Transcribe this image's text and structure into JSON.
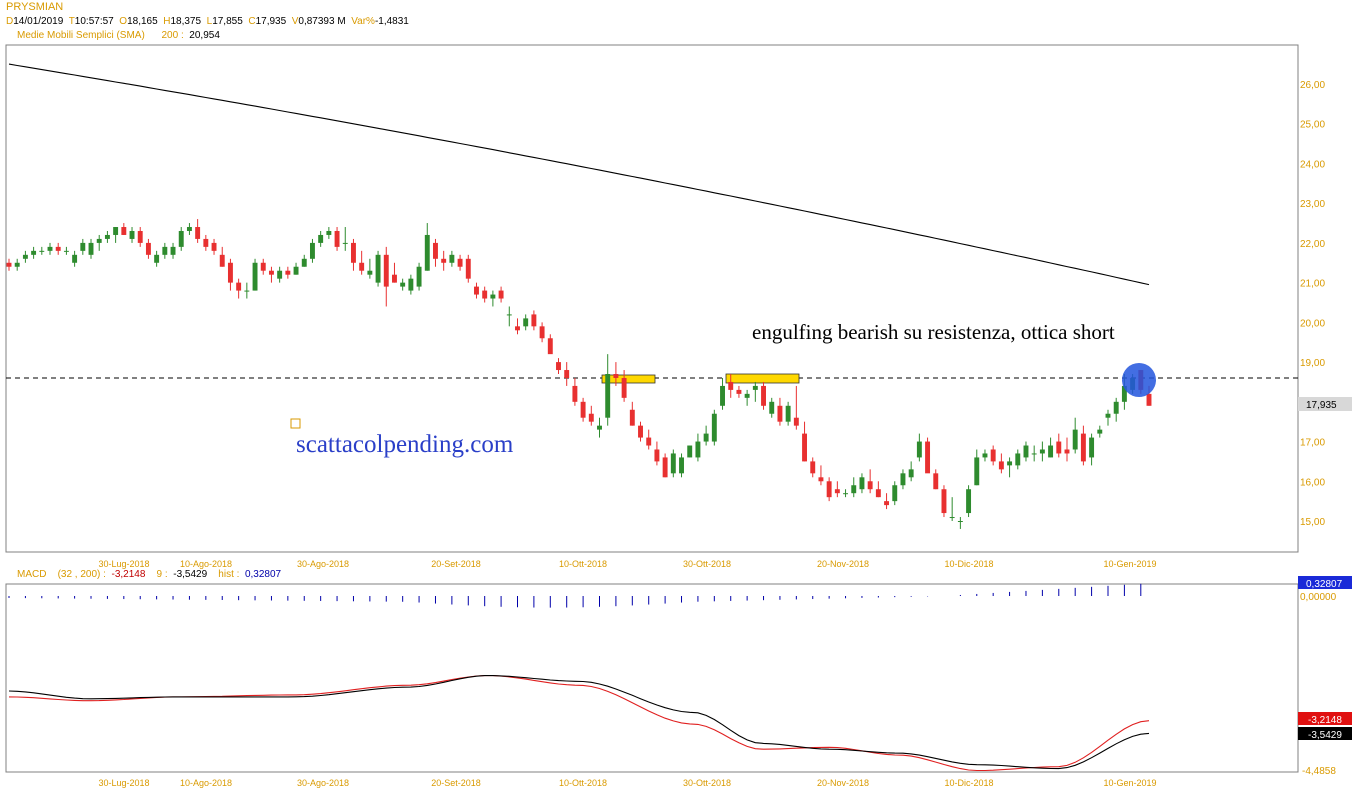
{
  "header": {
    "symbol": "PRYSMIAN",
    "d_label": "D",
    "date": "14/01/2019",
    "t_label": "T",
    "time": "10:57:57",
    "o_label": "O",
    "open": "18,165",
    "h_label": "H",
    "high": "18,375",
    "l_label": "L",
    "low": "17,855",
    "c_label": "C",
    "close": "17,935",
    "v_label": "V",
    "volume": "0,87393 M",
    "var_label": "Var%",
    "var": "-1,4831",
    "sma_label": "Medie Mobili Semplici (SMA)",
    "sma_period": "200 :",
    "sma_value": "20,954"
  },
  "annotations": {
    "comment": "engulfing bearish su resistenza, ottica short",
    "watermark": "scattacolpending.com",
    "price_marker": "17,935"
  },
  "macd": {
    "label": "MACD",
    "params": "(32 , 200) :",
    "macd_value": "-3,2148",
    "signal_label": "9 :",
    "signal_value": "-3,5429",
    "hist_label": "hist :",
    "hist_value": "0,32807",
    "hist_marker": "0,32807",
    "zero_label": "0,00000",
    "macd_marker": "-3,2148",
    "signal_marker": "-3,5429",
    "min_label": "-4,4858"
  },
  "colors": {
    "up": "#2e8b2e",
    "down": "#e83030",
    "sma": "#000000",
    "label": "#d99a00",
    "hist": "#0000aa",
    "resistance_box": "#ffd800",
    "circle": "#2255dd",
    "watermark": "#2a3fc8"
  },
  "chart_data": [
    {
      "type": "candlestick",
      "title": "PRYSMIAN",
      "x_ticks": [
        "30-Lug-2018",
        "10-Ago-2018",
        "30-Ago-2018",
        "20-Set-2018",
        "10-Ott-2018",
        "30-Ott-2018",
        "20-Nov-2018",
        "10-Dic-2018",
        "10-Gen-2019"
      ],
      "y_ticks": [
        "15,00",
        "16,00",
        "17,00",
        "18,00",
        "19,00",
        "20,00",
        "21,00",
        "22,00",
        "23,00",
        "24,00",
        "25,00",
        "26,00"
      ],
      "ylim": [
        14.3,
        26.8
      ],
      "resistance_level": 18.6,
      "ohlc": [
        [
          21.5,
          21.6,
          21.3,
          21.4
        ],
        [
          21.4,
          21.6,
          21.3,
          21.5
        ],
        [
          21.6,
          21.8,
          21.5,
          21.7
        ],
        [
          21.7,
          21.9,
          21.6,
          21.8
        ],
        [
          21.8,
          21.9,
          21.7,
          21.8
        ],
        [
          21.8,
          22.0,
          21.7,
          21.9
        ],
        [
          21.9,
          22.0,
          21.7,
          21.8
        ],
        [
          21.8,
          21.9,
          21.7,
          21.8
        ],
        [
          21.5,
          21.8,
          21.4,
          21.7
        ],
        [
          21.8,
          22.1,
          21.7,
          22.0
        ],
        [
          21.7,
          22.1,
          21.6,
          22.0
        ],
        [
          22.0,
          22.2,
          21.8,
          22.1
        ],
        [
          22.1,
          22.3,
          22.0,
          22.2
        ],
        [
          22.2,
          22.4,
          22.0,
          22.4
        ],
        [
          22.4,
          22.5,
          22.2,
          22.2
        ],
        [
          22.1,
          22.4,
          22.0,
          22.3
        ],
        [
          22.3,
          22.4,
          21.9,
          22.0
        ],
        [
          22.0,
          22.1,
          21.6,
          21.7
        ],
        [
          21.5,
          21.8,
          21.4,
          21.7
        ],
        [
          21.7,
          22.0,
          21.6,
          21.9
        ],
        [
          21.7,
          22.0,
          21.6,
          21.9
        ],
        [
          21.9,
          22.4,
          21.8,
          22.3
        ],
        [
          22.3,
          22.5,
          22.2,
          22.4
        ],
        [
          22.4,
          22.6,
          22.0,
          22.1
        ],
        [
          22.1,
          22.2,
          21.8,
          21.9
        ],
        [
          22.0,
          22.1,
          21.7,
          21.8
        ],
        [
          21.7,
          21.9,
          21.4,
          21.4
        ],
        [
          21.5,
          21.6,
          20.8,
          21.0
        ],
        [
          21.0,
          21.1,
          20.6,
          20.8
        ],
        [
          20.8,
          21.0,
          20.6,
          20.8
        ],
        [
          20.8,
          21.6,
          20.8,
          21.5
        ],
        [
          21.5,
          21.6,
          21.2,
          21.3
        ],
        [
          21.3,
          21.4,
          21.0,
          21.2
        ],
        [
          21.1,
          21.4,
          21.0,
          21.3
        ],
        [
          21.3,
          21.4,
          21.1,
          21.2
        ],
        [
          21.2,
          21.5,
          21.2,
          21.4
        ],
        [
          21.4,
          21.7,
          21.4,
          21.6
        ],
        [
          21.6,
          22.1,
          21.5,
          22.0
        ],
        [
          22.0,
          22.3,
          21.9,
          22.2
        ],
        [
          22.2,
          22.4,
          22.1,
          22.3
        ],
        [
          22.3,
          22.4,
          21.8,
          21.9
        ],
        [
          22.0,
          22.4,
          21.8,
          22.0
        ],
        [
          22.0,
          22.1,
          21.3,
          21.5
        ],
        [
          21.5,
          21.8,
          21.2,
          21.3
        ],
        [
          21.2,
          21.6,
          21.1,
          21.3
        ],
        [
          21.0,
          21.8,
          20.9,
          21.7
        ],
        [
          21.7,
          21.9,
          20.4,
          20.9
        ],
        [
          21.2,
          21.5,
          21.0,
          21.0
        ],
        [
          20.9,
          21.1,
          20.8,
          21.0
        ],
        [
          20.8,
          21.2,
          20.7,
          21.1
        ],
        [
          20.9,
          21.5,
          20.8,
          21.4
        ],
        [
          21.3,
          22.5,
          21.3,
          22.2
        ],
        [
          22.0,
          22.1,
          21.4,
          21.6
        ],
        [
          21.6,
          21.8,
          21.3,
          21.5
        ],
        [
          21.5,
          21.8,
          21.4,
          21.7
        ],
        [
          21.6,
          21.7,
          21.3,
          21.4
        ],
        [
          21.6,
          21.7,
          21.0,
          21.1
        ],
        [
          20.9,
          21.0,
          20.6,
          20.7
        ],
        [
          20.8,
          20.9,
          20.5,
          20.6
        ],
        [
          20.6,
          20.8,
          20.4,
          20.7
        ],
        [
          20.8,
          20.9,
          20.5,
          20.6
        ],
        [
          20.2,
          20.4,
          19.9,
          20.2
        ],
        [
          19.9,
          20.1,
          19.7,
          19.8
        ],
        [
          19.9,
          20.2,
          19.8,
          20.1
        ],
        [
          20.2,
          20.3,
          19.8,
          19.9
        ],
        [
          19.9,
          20.0,
          19.5,
          19.6
        ],
        [
          19.6,
          19.7,
          19.3,
          19.2
        ],
        [
          19.0,
          19.1,
          18.7,
          18.8
        ],
        [
          18.8,
          19.0,
          18.4,
          18.6
        ],
        [
          18.4,
          18.6,
          17.9,
          18.0
        ],
        [
          18.0,
          18.1,
          17.5,
          17.6
        ],
        [
          17.7,
          17.9,
          17.4,
          17.5
        ],
        [
          17.3,
          17.6,
          17.1,
          17.4
        ],
        [
          17.6,
          19.2,
          17.4,
          18.7
        ],
        [
          18.7,
          19.0,
          18.4,
          18.6
        ],
        [
          18.6,
          18.8,
          18.0,
          18.1
        ],
        [
          17.8,
          18.0,
          17.4,
          17.4
        ],
        [
          17.4,
          17.5,
          17.0,
          17.1
        ],
        [
          17.1,
          17.3,
          16.8,
          16.9
        ],
        [
          16.8,
          17.0,
          16.4,
          16.5
        ],
        [
          16.6,
          16.7,
          16.1,
          16.1
        ],
        [
          16.2,
          16.8,
          16.1,
          16.7
        ],
        [
          16.2,
          16.7,
          16.1,
          16.6
        ],
        [
          16.6,
          16.9,
          16.6,
          16.9
        ],
        [
          16.6,
          17.2,
          16.5,
          17.0
        ],
        [
          17.0,
          17.4,
          16.9,
          17.2
        ],
        [
          17.0,
          17.8,
          16.9,
          17.7
        ],
        [
          17.9,
          18.6,
          17.8,
          18.4
        ],
        [
          18.5,
          18.7,
          18.1,
          18.3
        ],
        [
          18.3,
          18.4,
          18.1,
          18.2
        ],
        [
          18.1,
          18.3,
          17.9,
          18.2
        ],
        [
          18.3,
          18.5,
          18.0,
          18.4
        ],
        [
          18.4,
          18.5,
          17.8,
          17.9
        ],
        [
          17.7,
          18.1,
          17.6,
          18.0
        ],
        [
          17.9,
          18.1,
          17.4,
          17.5
        ],
        [
          17.5,
          18.0,
          17.4,
          17.9
        ],
        [
          17.6,
          18.4,
          17.3,
          17.4
        ],
        [
          17.2,
          17.5,
          16.5,
          16.5
        ],
        [
          16.5,
          16.6,
          16.1,
          16.2
        ],
        [
          16.1,
          16.4,
          15.9,
          16.0
        ],
        [
          16.0,
          16.1,
          15.5,
          15.6
        ],
        [
          15.8,
          16.0,
          15.6,
          15.7
        ],
        [
          15.7,
          15.8,
          15.6,
          15.7
        ],
        [
          15.7,
          16.1,
          15.6,
          15.9
        ],
        [
          15.8,
          16.2,
          15.7,
          16.1
        ],
        [
          16.0,
          16.3,
          15.7,
          15.8
        ],
        [
          15.8,
          16.0,
          15.6,
          15.6
        ],
        [
          15.5,
          15.7,
          15.3,
          15.4
        ],
        [
          15.5,
          16.0,
          15.4,
          15.9
        ],
        [
          15.9,
          16.3,
          15.8,
          16.2
        ],
        [
          16.1,
          16.5,
          16.0,
          16.3
        ],
        [
          16.6,
          17.2,
          16.5,
          17.0
        ],
        [
          17.0,
          17.1,
          16.3,
          16.2
        ],
        [
          16.2,
          16.3,
          15.8,
          15.8
        ],
        [
          15.8,
          15.9,
          15.1,
          15.2
        ],
        [
          15.1,
          15.6,
          15.0,
          15.1
        ],
        [
          15.0,
          15.1,
          14.8,
          15.0
        ],
        [
          15.2,
          15.9,
          15.1,
          15.8
        ],
        [
          15.9,
          16.8,
          15.9,
          16.6
        ],
        [
          16.6,
          16.8,
          16.5,
          16.7
        ],
        [
          16.8,
          16.9,
          16.4,
          16.5
        ],
        [
          16.5,
          16.7,
          16.2,
          16.3
        ],
        [
          16.4,
          16.6,
          16.1,
          16.5
        ],
        [
          16.4,
          16.8,
          16.3,
          16.7
        ],
        [
          16.6,
          17.0,
          16.5,
          16.9
        ],
        [
          16.7,
          16.9,
          16.5,
          16.7
        ],
        [
          16.7,
          17.0,
          16.5,
          16.8
        ],
        [
          16.6,
          17.1,
          16.6,
          16.9
        ],
        [
          17.0,
          17.2,
          16.6,
          16.7
        ],
        [
          16.8,
          17.1,
          16.5,
          16.7
        ],
        [
          16.8,
          17.6,
          16.7,
          17.3
        ],
        [
          17.2,
          17.4,
          16.4,
          16.5
        ],
        [
          16.6,
          17.2,
          16.4,
          17.1
        ],
        [
          17.2,
          17.4,
          17.1,
          17.3
        ],
        [
          17.6,
          17.8,
          17.4,
          17.7
        ],
        [
          17.7,
          18.1,
          17.5,
          18.0
        ],
        [
          18.0,
          18.7,
          17.8,
          18.4
        ],
        [
          18.3,
          18.7,
          18.2,
          18.6
        ],
        [
          18.8,
          18.8,
          18.2,
          18.3
        ],
        [
          18.2,
          18.4,
          17.9,
          17.9
        ]
      ],
      "sma_start": 26.5,
      "sma_end": 20.95
    },
    {
      "type": "line",
      "title": "MACD",
      "series": [
        {
          "name": "MACD",
          "start": -2.55,
          "end": -3.2148
        },
        {
          "name": "9",
          "start": -2.45,
          "end": -3.5429
        }
      ],
      "histogram_range": [
        -0.3,
        0.32807
      ],
      "min": -4.4858
    }
  ]
}
